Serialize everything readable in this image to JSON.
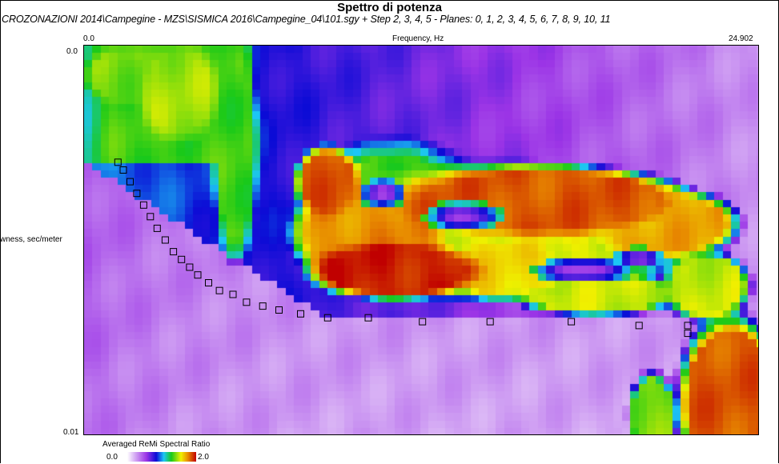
{
  "window": {
    "title": "Spettro di potenza",
    "subtitle": "CROZONAZIONI 2014\\Campegine - MZS\\SISMICA 2016\\Campegine_04\\101.sgy + Step 2, 3, 4, 5 - Planes: 0, 1, 2, 3, 4, 5, 6, 7, 8, 9, 10, 11"
  },
  "chart_data": {
    "type": "heatmap",
    "title": "Spettro di potenza",
    "xlabel": "Frequency, Hz",
    "ylabel": "wness, sec/meter",
    "x_tick_labels": [
      "0.0",
      "24.902"
    ],
    "y_tick_labels": [
      "0.0",
      "0.01"
    ],
    "xlim": [
      0.0,
      24.902
    ],
    "ylim": [
      0.0,
      0.01
    ],
    "y_axis_direction": "down",
    "colorbar": {
      "label": "Averaged ReMi Spectral Ratio",
      "min_label": "0.0",
      "max_label": "2.0",
      "range": [
        0.0,
        2.0
      ],
      "colors": [
        "#ffffff",
        "#9b34e6",
        "#0b0bd6",
        "#1cc6f5",
        "#19c919",
        "#f0f000",
        "#e88a00",
        "#c00000"
      ]
    },
    "picks": {
      "marker": "hollow-square",
      "points": [
        {
          "x": 1.25,
          "y": 0.003
        },
        {
          "x": 1.45,
          "y": 0.0032
        },
        {
          "x": 1.7,
          "y": 0.0035
        },
        {
          "x": 1.95,
          "y": 0.0038
        },
        {
          "x": 2.2,
          "y": 0.0041
        },
        {
          "x": 2.45,
          "y": 0.0044
        },
        {
          "x": 2.7,
          "y": 0.0047
        },
        {
          "x": 3.0,
          "y": 0.005
        },
        {
          "x": 3.3,
          "y": 0.0053
        },
        {
          "x": 3.6,
          "y": 0.0055
        },
        {
          "x": 3.9,
          "y": 0.0057
        },
        {
          "x": 4.2,
          "y": 0.0059
        },
        {
          "x": 4.6,
          "y": 0.0061
        },
        {
          "x": 5.0,
          "y": 0.0063
        },
        {
          "x": 5.5,
          "y": 0.0064
        },
        {
          "x": 6.0,
          "y": 0.0066
        },
        {
          "x": 6.6,
          "y": 0.0067
        },
        {
          "x": 7.2,
          "y": 0.0068
        },
        {
          "x": 8.0,
          "y": 0.0069
        },
        {
          "x": 9.0,
          "y": 0.007
        },
        {
          "x": 10.5,
          "y": 0.007
        },
        {
          "x": 12.5,
          "y": 0.0071
        },
        {
          "x": 15.0,
          "y": 0.0071
        },
        {
          "x": 18.0,
          "y": 0.0071
        },
        {
          "x": 20.5,
          "y": 0.0072
        },
        {
          "x": 22.3,
          "y": 0.0072
        },
        {
          "x": 22.3,
          "y": 0.0074
        }
      ]
    },
    "regions": [
      {
        "shape": "background-gradient",
        "value_left": 1.0,
        "value_right": 0.3,
        "value_bottom": 0.25
      },
      {
        "shape": "rect",
        "x0": 0.0,
        "x1": 6.2,
        "y0": 0.0,
        "y1": 0.0031,
        "value": 1.33
      },
      {
        "shape": "ellipse",
        "cx": 3.5,
        "cy": 0.0012,
        "rx": 1.6,
        "ry": 0.0014,
        "value": 1.45
      },
      {
        "shape": "ellipse",
        "cx": 1.5,
        "cy": 0.0008,
        "rx": 1.6,
        "ry": 0.0008,
        "value": 1.4
      },
      {
        "shape": "ellipse",
        "cx": 5.6,
        "cy": 0.0027,
        "rx": 0.9,
        "ry": 0.0031,
        "value": 1.33
      },
      {
        "shape": "ellipse",
        "cx": 11.5,
        "cy": 0.0045,
        "rx": 4.0,
        "ry": 0.0022,
        "value": 1.3
      },
      {
        "shape": "ellipse",
        "cx": 15.5,
        "cy": 0.0048,
        "rx": 8.0,
        "ry": 0.0019,
        "value": 1.55
      },
      {
        "shape": "ellipse",
        "cx": 10.5,
        "cy": 0.0049,
        "rx": 3.0,
        "ry": 0.0015,
        "value": 1.75
      },
      {
        "shape": "ellipse",
        "cx": 9.0,
        "cy": 0.0035,
        "rx": 1.3,
        "ry": 0.001,
        "value": 1.85
      },
      {
        "shape": "ellipse",
        "cx": 17.0,
        "cy": 0.004,
        "rx": 6.0,
        "ry": 0.001,
        "value": 1.85
      },
      {
        "shape": "ellipse",
        "cx": 21.5,
        "cy": 0.0046,
        "rx": 3.0,
        "ry": 0.001,
        "value": 1.7
      },
      {
        "shape": "ellipse",
        "cx": 11.5,
        "cy": 0.0058,
        "rx": 3.5,
        "ry": 0.0008,
        "value": 1.95
      },
      {
        "shape": "ellipse",
        "cx": 15.5,
        "cy": 0.0058,
        "rx": 2.5,
        "ry": 0.0008,
        "value": 1.6
      },
      {
        "shape": "ellipse",
        "cx": 19.0,
        "cy": 0.0064,
        "rx": 3.5,
        "ry": 0.0006,
        "value": 1.5
      },
      {
        "shape": "ellipse",
        "cx": 23.0,
        "cy": 0.0062,
        "rx": 1.8,
        "ry": 0.001,
        "value": 1.5
      },
      {
        "shape": "ellipse",
        "cx": 23.9,
        "cy": 0.0092,
        "rx": 2.2,
        "ry": 0.0025,
        "value": 1.85
      },
      {
        "shape": "ellipse",
        "cx": 21.0,
        "cy": 0.0095,
        "rx": 1.0,
        "ry": 0.0012,
        "value": 1.4
      },
      {
        "shape": "ellipse",
        "cx": 11.0,
        "cy": 0.0038,
        "rx": 0.9,
        "ry": 0.0004,
        "value": 0.52
      },
      {
        "shape": "ellipse",
        "cx": 14.0,
        "cy": 0.0044,
        "rx": 1.5,
        "ry": 0.0004,
        "value": 0.52
      },
      {
        "shape": "ellipse",
        "cx": 18.5,
        "cy": 0.0058,
        "rx": 2.0,
        "ry": 0.00035,
        "value": 0.5
      },
      {
        "shape": "ellipse",
        "cx": 20.5,
        "cy": 0.0055,
        "rx": 1.0,
        "ry": 0.0003,
        "value": 0.5
      },
      {
        "shape": "ellipse",
        "cx": 23.8,
        "cy": 0.0084,
        "rx": 0.3,
        "ry": 0.0003,
        "value": 1.45
      }
    ]
  }
}
